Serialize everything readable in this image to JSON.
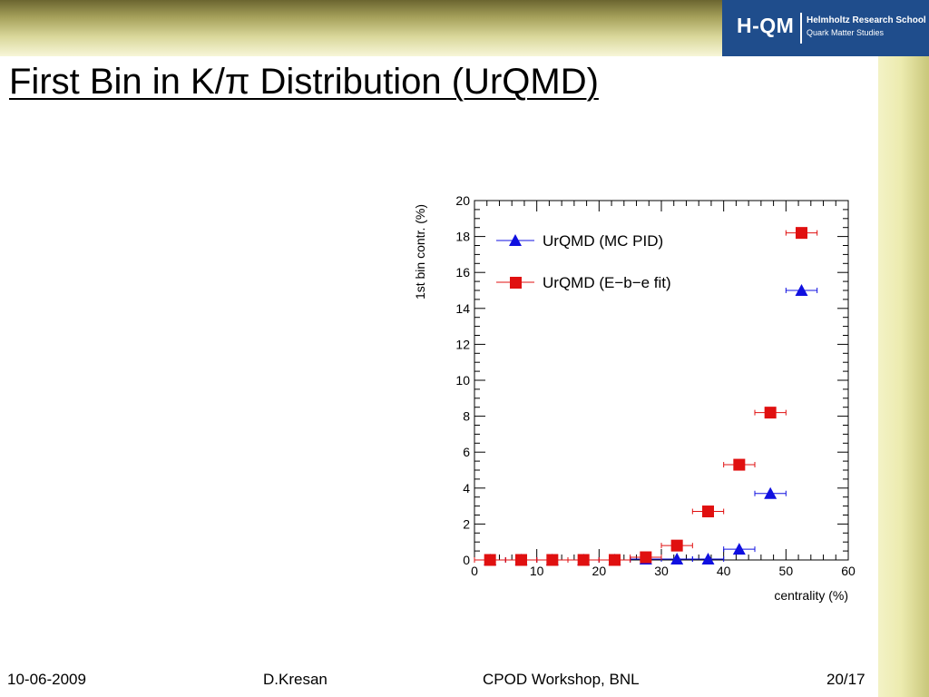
{
  "header": {
    "logo": {
      "mark": "H-QM",
      "line1": "Helmholtz Research School",
      "line2": "Quark Matter Studies"
    },
    "title": "First Bin in K/π Distribution (UrQMD)"
  },
  "footer": {
    "date": "10-06-2009",
    "author": "D.Kresan",
    "event": "CPOD Workshop, BNL",
    "page": "20/17"
  },
  "colors": {
    "accent_blue": "#1f4d8c",
    "band_olive": "#a5a05a",
    "series_mc": "#1010e0",
    "series_fit": "#e01010"
  },
  "chart_data": {
    "type": "scatter",
    "xlabel": "centrality (%)",
    "ylabel": "1st bin contr. (%)",
    "xlim": [
      0,
      60
    ],
    "ylim": [
      0,
      20
    ],
    "xticks": [
      0,
      10,
      20,
      30,
      40,
      50,
      60
    ],
    "yticks": [
      0,
      2,
      4,
      6,
      8,
      10,
      12,
      14,
      16,
      18,
      20
    ],
    "legend_position": "top-left",
    "grid": false,
    "series": [
      {
        "name": "UrQMD (MC PID)",
        "marker": "triangle",
        "color": "#1010e0",
        "x": [
          2.5,
          7.5,
          12.5,
          17.5,
          22.5,
          27.5,
          32.5,
          37.5,
          42.5,
          47.5,
          52.5
        ],
        "y": [
          0,
          0,
          0,
          0,
          0,
          0.05,
          0.05,
          0.05,
          0.6,
          3.7,
          15
        ],
        "xerr": 2.5
      },
      {
        "name": "UrQMD (E−b−e fit)",
        "marker": "square",
        "color": "#e01010",
        "x": [
          2.5,
          7.5,
          12.5,
          17.5,
          22.5,
          27.5,
          32.5,
          37.5,
          42.5,
          47.5,
          52.5
        ],
        "y": [
          0,
          0,
          0,
          0,
          0,
          0.15,
          0.8,
          2.7,
          5.3,
          8.2,
          18.2
        ],
        "xerr": 2.5
      }
    ]
  }
}
